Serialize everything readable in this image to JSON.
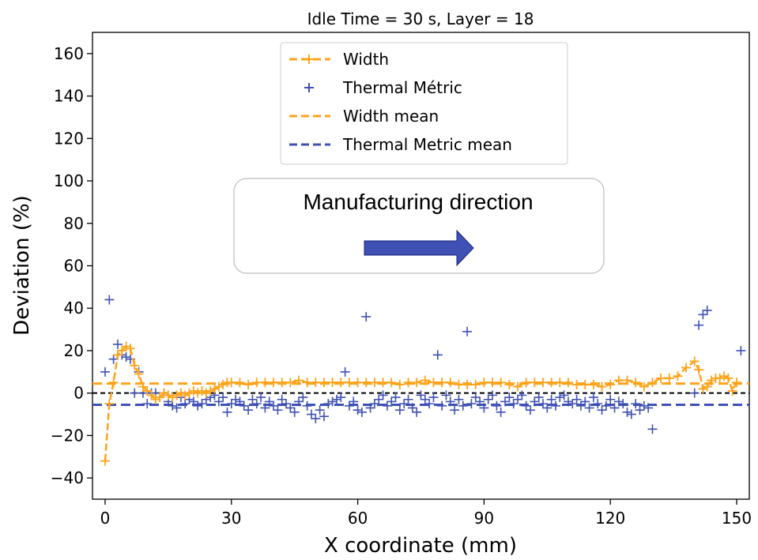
{
  "chart_data": {
    "type": "line",
    "title": "Idle Time = 30 s, Layer = 18",
    "xlabel": "X coordinate (mm)",
    "ylabel": "Deviation (%)",
    "xlim": [
      -3,
      153
    ],
    "ylim": [
      -50,
      170
    ],
    "xticks": [
      0,
      30,
      60,
      90,
      120,
      150
    ],
    "yticks": [
      -40,
      -20,
      0,
      20,
      40,
      60,
      80,
      100,
      120,
      140,
      160
    ],
    "xtick_labels": [
      "0",
      "30",
      "60",
      "90",
      "120",
      "150"
    ],
    "ytick_labels": [
      "−40",
      "−20",
      "0",
      "20",
      "40",
      "60",
      "80",
      "100",
      "120",
      "140",
      "160"
    ],
    "grid": false,
    "legend": {
      "position": "top-center",
      "entries": [
        "Width",
        "Thermal Métric",
        "Width mean",
        "Thermal Metric mean"
      ]
    },
    "colors": {
      "width": "#FFA31A",
      "thermal": "#3F51B5",
      "zero_line": "#000000",
      "arrow": "#3F51B5"
    },
    "annotation": {
      "text": "Manufacturing direction",
      "arrow_direction": "right"
    },
    "zero_line": 0,
    "series": [
      {
        "name": "Width",
        "style": "dashed line with plus markers",
        "x": [
          0,
          1,
          2,
          3,
          4,
          5,
          6,
          7,
          8,
          9,
          10,
          11,
          12,
          13,
          14,
          15,
          16,
          17,
          18,
          19,
          20,
          21,
          22,
          23,
          24,
          25,
          26,
          27,
          28,
          29,
          30,
          32,
          34,
          36,
          38,
          40,
          42,
          44,
          46,
          48,
          50,
          52,
          54,
          56,
          58,
          60,
          62,
          64,
          66,
          68,
          70,
          72,
          74,
          76,
          78,
          80,
          82,
          84,
          86,
          88,
          90,
          92,
          94,
          96,
          98,
          100,
          102,
          104,
          106,
          108,
          110,
          112,
          114,
          116,
          118,
          120,
          122,
          124,
          126,
          128,
          130,
          132,
          134,
          136,
          138,
          140,
          141,
          142,
          143,
          144,
          145,
          146,
          147,
          148,
          149,
          150
        ],
        "values": [
          -32,
          -5,
          5,
          18,
          20,
          22,
          21,
          13,
          9,
          3,
          1,
          -1,
          -3,
          -2,
          0,
          -1,
          -2,
          -1,
          0,
          -1,
          0,
          1,
          0,
          1,
          0,
          1,
          2,
          3,
          4,
          5,
          5,
          5,
          4,
          5,
          5,
          5,
          5,
          5,
          6,
          5,
          5,
          5,
          5,
          5,
          5,
          5,
          5,
          5,
          5,
          5,
          4,
          5,
          5,
          6,
          5,
          5,
          5,
          4,
          4,
          4,
          5,
          5,
          5,
          4,
          3,
          5,
          5,
          5,
          5,
          5,
          5,
          4,
          4,
          4,
          3,
          4,
          6,
          6,
          5,
          3,
          5,
          7,
          7,
          8,
          12,
          15,
          11,
          2,
          3,
          6,
          7,
          7,
          8,
          7,
          1,
          5
        ]
      },
      {
        "name": "Thermal Métric",
        "style": "plus markers",
        "x": [
          0,
          1,
          2,
          3,
          4,
          5,
          6,
          7,
          8,
          9,
          10,
          11,
          12,
          13,
          14,
          15,
          16,
          17,
          18,
          19,
          20,
          21,
          22,
          23,
          24,
          25,
          26,
          27,
          28,
          29,
          30,
          31,
          32,
          33,
          34,
          35,
          36,
          37,
          38,
          39,
          40,
          41,
          42,
          43,
          44,
          45,
          46,
          47,
          48,
          49,
          50,
          51,
          52,
          53,
          54,
          55,
          56,
          57,
          58,
          59,
          60,
          61,
          62,
          63,
          64,
          65,
          66,
          67,
          68,
          69,
          70,
          71,
          72,
          73,
          74,
          75,
          76,
          77,
          78,
          79,
          80,
          81,
          82,
          83,
          84,
          85,
          86,
          87,
          88,
          89,
          90,
          91,
          92,
          93,
          94,
          95,
          96,
          97,
          98,
          99,
          100,
          101,
          102,
          103,
          104,
          105,
          106,
          107,
          108,
          109,
          110,
          111,
          112,
          113,
          114,
          115,
          116,
          117,
          118,
          119,
          120,
          121,
          122,
          123,
          124,
          125,
          126,
          127,
          128,
          129,
          130,
          140,
          141,
          142,
          143,
          151
        ],
        "values": [
          10,
          44,
          16,
          23,
          18,
          17,
          16,
          0,
          10,
          0,
          -5,
          0,
          0,
          -2,
          0,
          -4,
          -6,
          -7,
          -2,
          -5,
          -3,
          -4,
          -6,
          -5,
          -3,
          -2,
          -1,
          -4,
          -2,
          -9,
          -5,
          -3,
          -4,
          -6,
          -8,
          -3,
          -5,
          -2,
          -7,
          -4,
          -6,
          -8,
          -3,
          -5,
          -7,
          -9,
          -4,
          -2,
          -6,
          -10,
          -12,
          -8,
          -11,
          -5,
          -4,
          -3,
          -2,
          10,
          -6,
          -4,
          -8,
          -9,
          36,
          -7,
          -5,
          -3,
          -1,
          -6,
          -4,
          -2,
          -8,
          -5,
          -3,
          -7,
          -9,
          -1,
          -3,
          -5,
          -2,
          18,
          -6,
          -1,
          -4,
          -8,
          -3,
          -6,
          29,
          -5,
          -2,
          -4,
          -7,
          -3,
          -1,
          -6,
          -9,
          -4,
          -2,
          -5,
          -3,
          -1,
          -6,
          -8,
          -4,
          -2,
          -5,
          -7,
          -3,
          -6,
          -2,
          -1,
          -4,
          -5,
          -3,
          -6,
          -4,
          -7,
          -2,
          -5,
          -8,
          -6,
          -3,
          -7,
          -4,
          -5,
          -9,
          -10,
          -5,
          -8,
          -6,
          -7,
          -17,
          0,
          32,
          37,
          39,
          20
        ]
      },
      {
        "name": "Width mean",
        "style": "dashed horizontal line",
        "value": 4.5
      },
      {
        "name": "Thermal Metric mean",
        "style": "dashed horizontal line",
        "value": -5.5
      }
    ]
  }
}
